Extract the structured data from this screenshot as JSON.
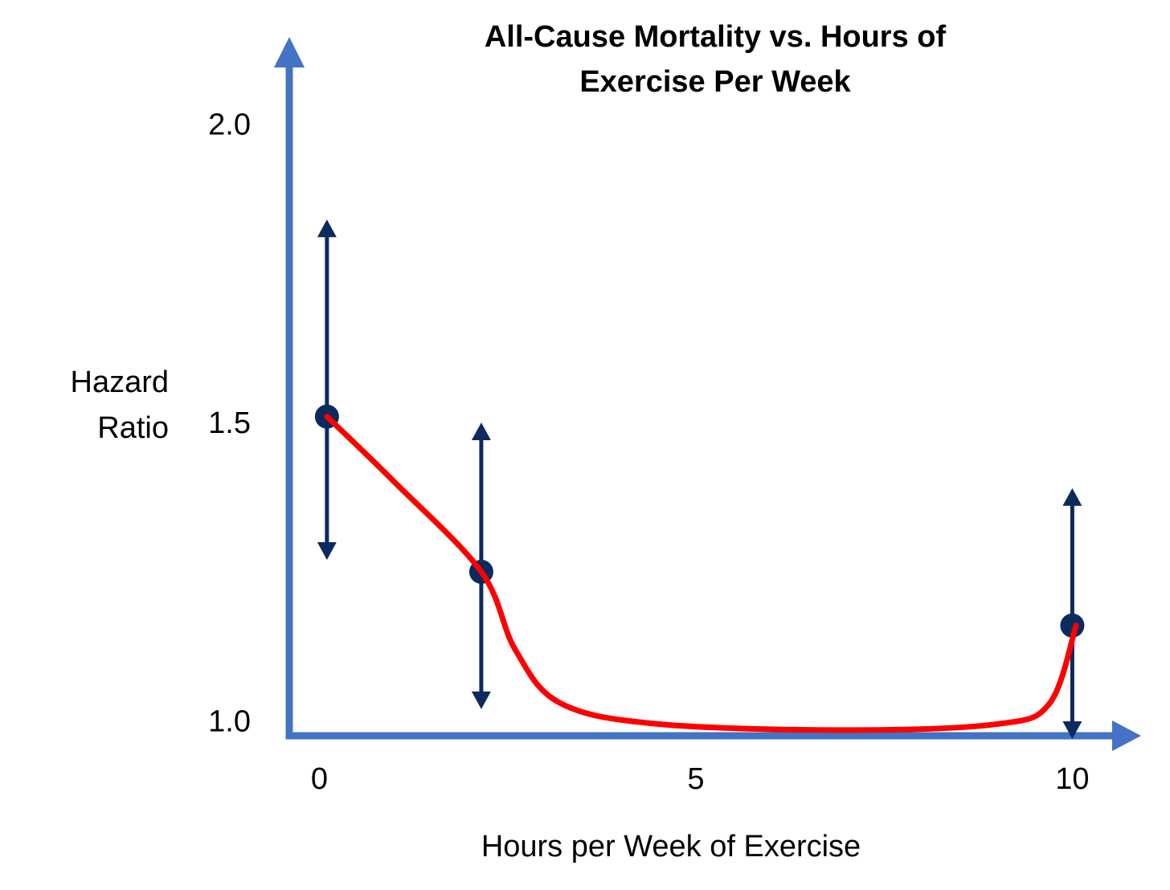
{
  "chart_data": {
    "type": "line",
    "title": [
      "All-Cause Mortality vs. Hours of",
      "Exercise Per Week"
    ],
    "xlabel": "Hours per Week of Exercise",
    "ylabel": [
      "Hazard",
      "Ratio"
    ],
    "xlim": [
      -0.4,
      10.7
    ],
    "ylim": [
      0.97,
      2.1
    ],
    "x_ticks": [
      {
        "value": 0,
        "label": "0"
      },
      {
        "value": 5,
        "label": "5"
      },
      {
        "value": 10,
        "label": "10"
      }
    ],
    "y_ticks": [
      {
        "value": 1.0,
        "label": "1.0"
      },
      {
        "value": 1.5,
        "label": "1.5"
      },
      {
        "value": 2.0,
        "label": "2.0"
      }
    ],
    "points": [
      {
        "x": 0.1,
        "y": 1.51,
        "lower": 1.27,
        "upper": 1.84
      },
      {
        "x": 2.15,
        "y": 1.25,
        "lower": 1.02,
        "upper": 1.5
      },
      {
        "x": 10.0,
        "y": 1.16,
        "lower": 0.97,
        "upper": 1.39
      }
    ],
    "curve": [
      {
        "x": 0.1,
        "y": 1.51
      },
      {
        "x": 1.0,
        "y": 1.4
      },
      {
        "x": 2.15,
        "y": 1.25
      },
      {
        "x": 2.6,
        "y": 1.12
      },
      {
        "x": 3.2,
        "y": 1.03
      },
      {
        "x": 4.5,
        "y": 0.995
      },
      {
        "x": 7.0,
        "y": 0.985
      },
      {
        "x": 9.0,
        "y": 0.995
      },
      {
        "x": 9.7,
        "y": 1.03
      },
      {
        "x": 10.05,
        "y": 1.16
      }
    ],
    "grid": false,
    "colors": {
      "axis": "#4472C4",
      "points": "#0D2A5E",
      "error_bars": "#0D2A5E",
      "curve": "#FF0000"
    }
  }
}
